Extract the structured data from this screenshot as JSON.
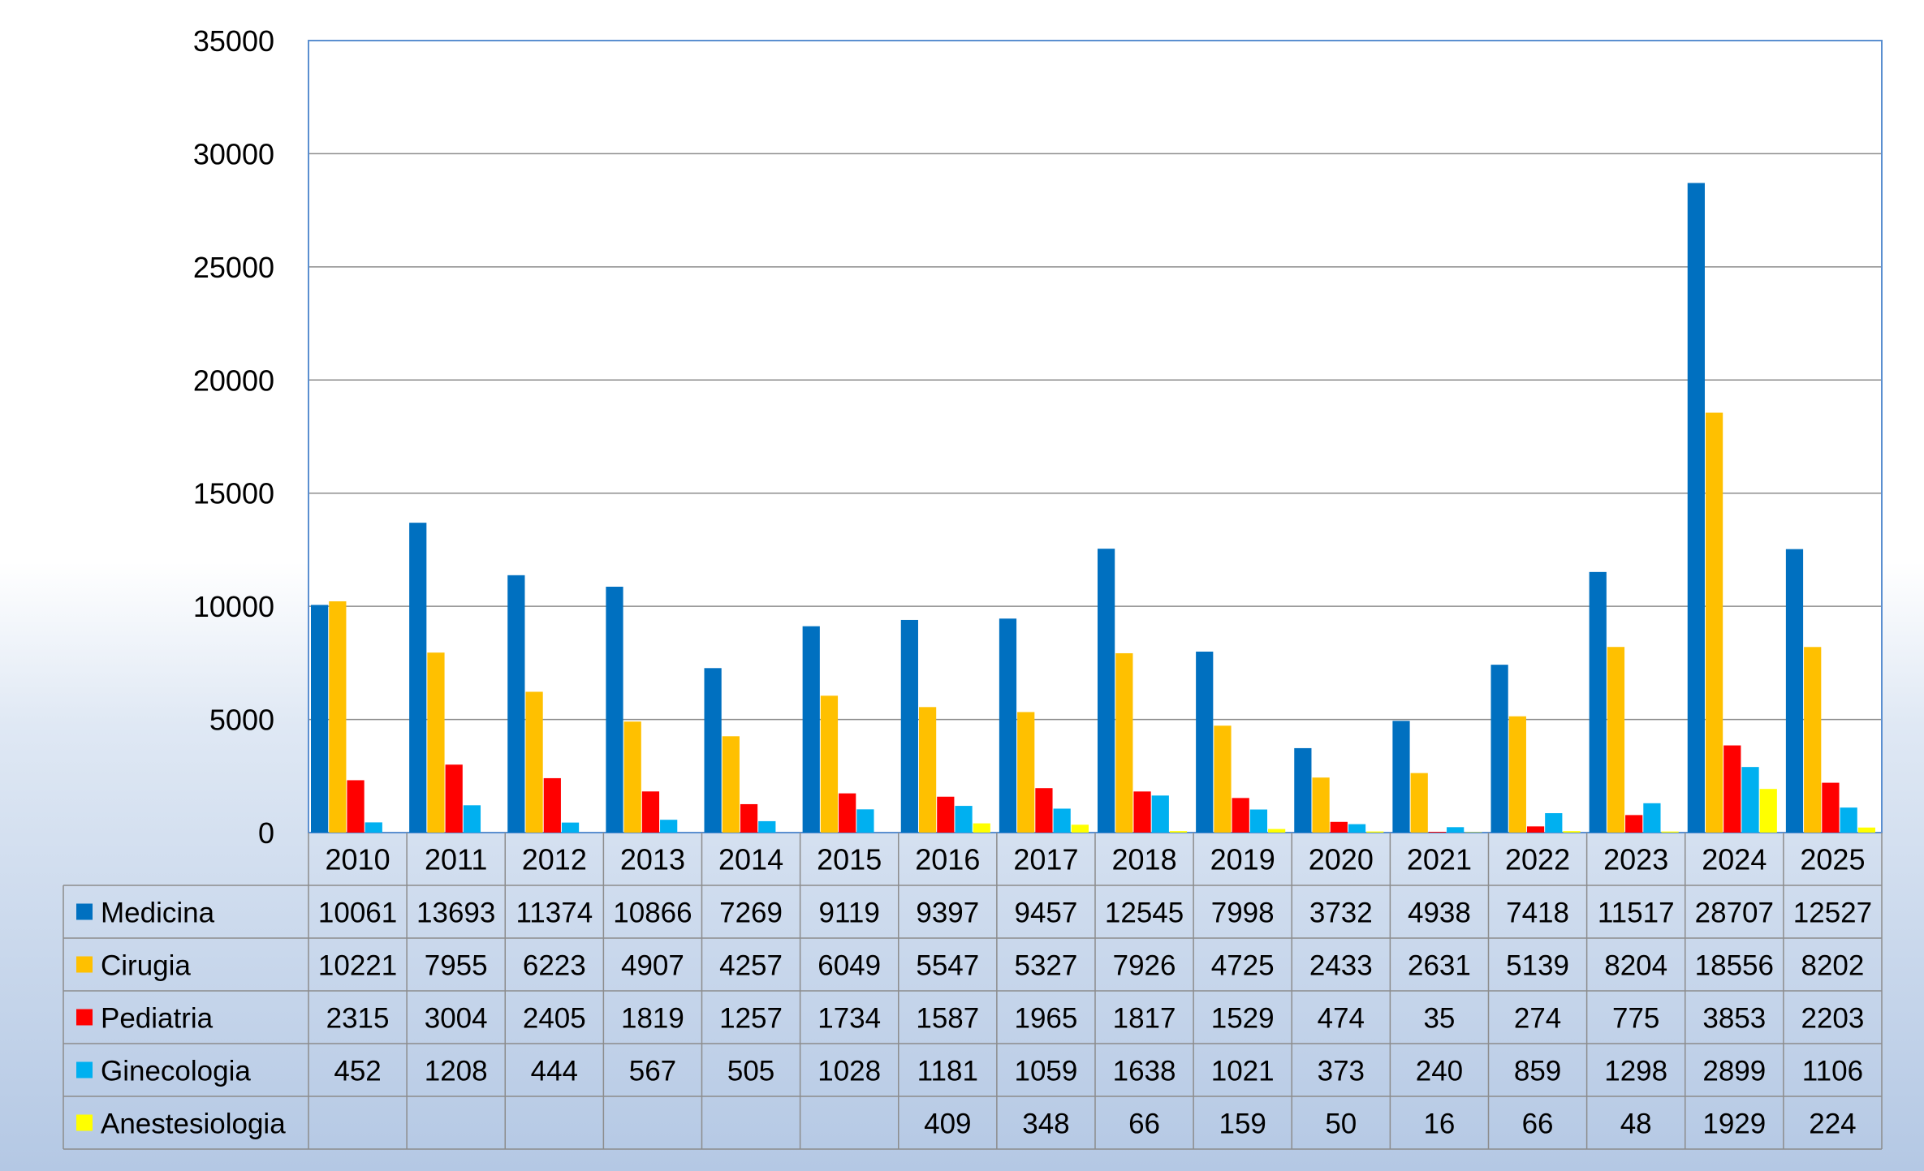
{
  "chart_data": {
    "type": "bar",
    "title": "",
    "xlabel": "",
    "ylabel": "",
    "ylim": [
      0,
      35000
    ],
    "yticks": [
      "35000",
      "30000",
      "25000",
      "20000",
      "15000",
      "10000",
      "5000",
      "0"
    ],
    "grid": true,
    "legend": "data-table",
    "categories": [
      "2010",
      "2011",
      "2012",
      "2013",
      "2014",
      "2015",
      "2016",
      "2017",
      "2018",
      "2019",
      "2020",
      "2021",
      "2022",
      "2023",
      "2024",
      "2025"
    ],
    "series": [
      {
        "name": "Medicina",
        "color": "#0070C0",
        "values": [
          10061,
          13693,
          11374,
          10866,
          7269,
          9119,
          9397,
          9457,
          12545,
          7998,
          3732,
          4938,
          7418,
          11517,
          28707,
          12527
        ]
      },
      {
        "name": "Cirugia",
        "color": "#FFC000",
        "values": [
          10221,
          7955,
          6223,
          4907,
          4257,
          6049,
          5547,
          5327,
          7926,
          4725,
          2433,
          2631,
          5139,
          8204,
          18556,
          8202
        ]
      },
      {
        "name": "Pediatria",
        "color": "#FF0000",
        "values": [
          2315,
          3004,
          2405,
          1819,
          1257,
          1734,
          1587,
          1965,
          1817,
          1529,
          474,
          35,
          274,
          775,
          3853,
          2203
        ]
      },
      {
        "name": " Ginecologia",
        "color": "#00B0F0",
        "values": [
          452,
          1208,
          444,
          567,
          505,
          1028,
          1181,
          1059,
          1638,
          1021,
          373,
          240,
          859,
          1298,
          2899,
          1106
        ]
      },
      {
        "name": "Anestesiologia",
        "color": "#FFFF00",
        "values": [
          null,
          null,
          null,
          null,
          null,
          null,
          409,
          348,
          66,
          159,
          50,
          16,
          66,
          48,
          1929,
          224
        ]
      }
    ]
  }
}
